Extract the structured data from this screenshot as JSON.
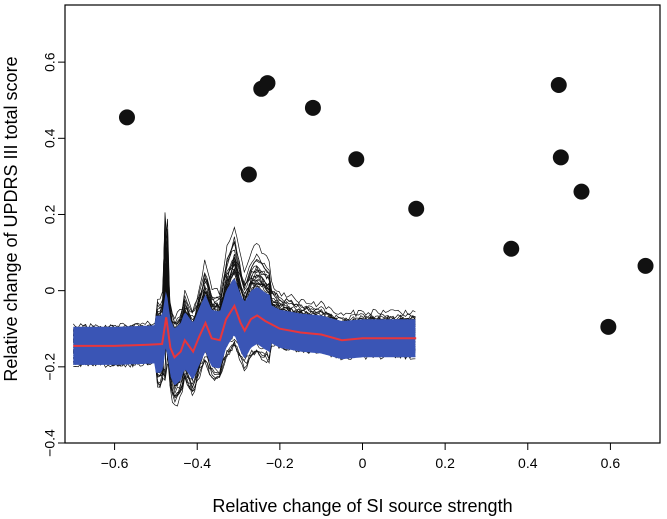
{
  "chart_data": {
    "type": "scatter",
    "title": "",
    "xlabel": "Relative change of SI source strength",
    "ylabel": "Relative change of UPDRS III total score",
    "xlim": [
      -0.72,
      0.72
    ],
    "ylim": [
      -0.4,
      0.75
    ],
    "xticks": [
      -0.6,
      -0.4,
      -0.2,
      0,
      0.2,
      0.4,
      0.6
    ],
    "xtick_labels": [
      "−0.6",
      "−0.4",
      "−0.2",
      "0",
      "0.2",
      "0.4",
      "0.6"
    ],
    "yticks": [
      -0.4,
      -0.2,
      0,
      0.2,
      0.4,
      0.6
    ],
    "ytick_labels": [
      "−0.4",
      "−0.2",
      "0",
      "0.2",
      "0.4",
      "0.6"
    ],
    "grid": false,
    "points": [
      {
        "x": -0.57,
        "y": 0.455
      },
      {
        "x": -0.275,
        "y": 0.305
      },
      {
        "x": -0.245,
        "y": 0.53
      },
      {
        "x": -0.23,
        "y": 0.545
      },
      {
        "x": -0.12,
        "y": 0.48
      },
      {
        "x": -0.015,
        "y": 0.345
      },
      {
        "x": 0.13,
        "y": 0.215
      },
      {
        "x": 0.36,
        "y": 0.11
      },
      {
        "x": 0.475,
        "y": 0.54
      },
      {
        "x": 0.48,
        "y": 0.35
      },
      {
        "x": 0.53,
        "y": 0.26
      },
      {
        "x": 0.595,
        "y": -0.095
      },
      {
        "x": 0.685,
        "y": 0.065
      }
    ],
    "bootstrap_curves": {
      "x_range": [
        -0.7,
        0.13
      ],
      "black_lines_count": 60,
      "band_color": "#3a55b5",
      "mean_line_color": "#e8363c",
      "mean_line": [
        [
          -0.7,
          -0.145
        ],
        [
          -0.6,
          -0.145
        ],
        [
          -0.52,
          -0.142
        ],
        [
          -0.485,
          -0.14
        ],
        [
          -0.475,
          -0.07
        ],
        [
          -0.465,
          -0.15
        ],
        [
          -0.455,
          -0.175
        ],
        [
          -0.44,
          -0.16
        ],
        [
          -0.43,
          -0.13
        ],
        [
          -0.41,
          -0.16
        ],
        [
          -0.395,
          -0.12
        ],
        [
          -0.38,
          -0.085
        ],
        [
          -0.365,
          -0.125
        ],
        [
          -0.345,
          -0.13
        ],
        [
          -0.33,
          -0.075
        ],
        [
          -0.31,
          -0.04
        ],
        [
          -0.295,
          -0.085
        ],
        [
          -0.285,
          -0.105
        ],
        [
          -0.27,
          -0.075
        ],
        [
          -0.255,
          -0.065
        ],
        [
          -0.235,
          -0.08
        ],
        [
          -0.2,
          -0.1
        ],
        [
          -0.15,
          -0.11
        ],
        [
          -0.1,
          -0.115
        ],
        [
          -0.05,
          -0.13
        ],
        [
          0.0,
          -0.125
        ],
        [
          0.05,
          -0.125
        ],
        [
          0.1,
          -0.125
        ],
        [
          0.13,
          -0.125
        ]
      ],
      "band_half_width": 0.05
    }
  }
}
